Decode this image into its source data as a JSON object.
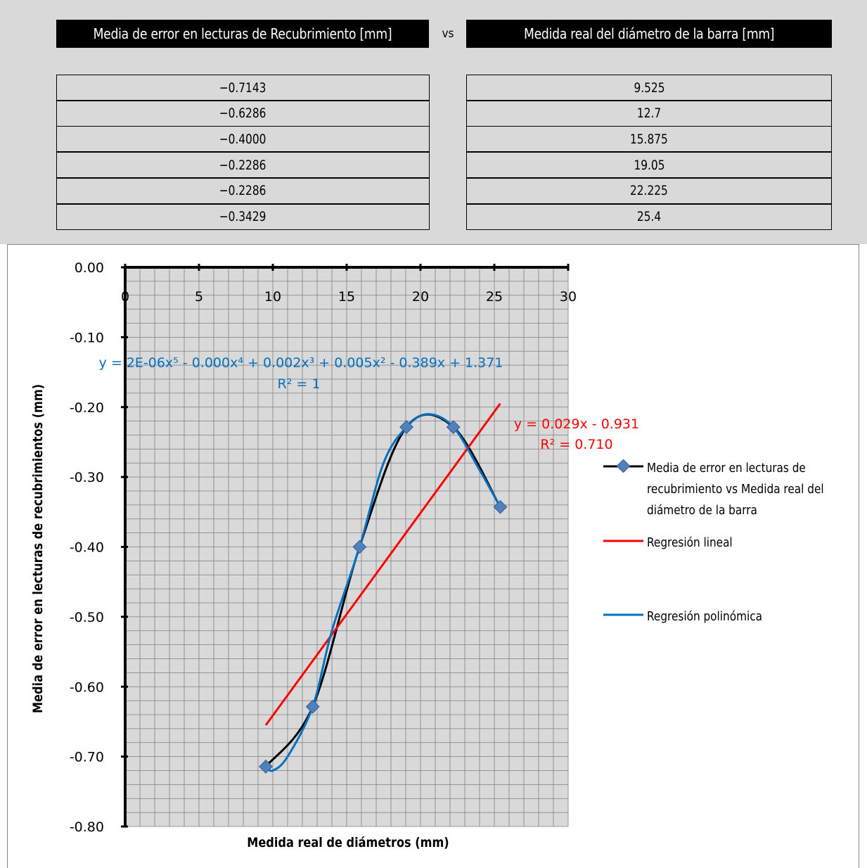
{
  "table": {
    "header_left": "Media de error en lecturas de Recubrimiento [mm]",
    "header_vs": "vs",
    "header_right": "Medida real del diámetro de la barra [mm]",
    "rows": [
      {
        "error": "-0.7143",
        "diameter": "9.525"
      },
      {
        "error": "-0.6286",
        "diameter": "12.7"
      },
      {
        "error": "-0.4000",
        "diameter": "15.875"
      },
      {
        "error": "-0.2286",
        "diameter": "19.05"
      },
      {
        "error": "-0.2286",
        "diameter": "22.225"
      },
      {
        "error": "-0.3429",
        "diameter": "25.4"
      }
    ]
  },
  "chart_data": {
    "type": "line",
    "title": "",
    "xlabel": "Medida real de diámetros (mm)",
    "ylabel": "Media de error en lecturas de recubrimientos (mm)",
    "xlim": [
      0,
      30
    ],
    "ylim": [
      -0.8,
      0.0
    ],
    "x_ticks": [
      "0",
      "5",
      "10",
      "15",
      "20",
      "25",
      "30"
    ],
    "y_ticks": [
      "0.00",
      "-0.10",
      "-0.20",
      "-0.30",
      "-0.40",
      "-0.50",
      "-0.60",
      "-0.70",
      "-0.80"
    ],
    "grid": true,
    "legend_position": "right",
    "series": [
      {
        "name": "Media de error en lecturas de recubrimiento vs Medida real del diámetro de la barra",
        "color": "#000000",
        "marker": "diamond",
        "marker_color": "#4f81bd",
        "x": [
          9.525,
          12.7,
          15.875,
          19.05,
          22.225,
          25.4
        ],
        "y": [
          -0.7143,
          -0.6286,
          -0.4,
          -0.2286,
          -0.2286,
          -0.3429
        ]
      },
      {
        "name": "Regresión lineal",
        "color": "#ff0000",
        "x": [
          9.525,
          25.4
        ],
        "y": [
          -0.655,
          -0.195
        ]
      },
      {
        "name": "Regresión polinómica",
        "color": "#0070c0",
        "x": [
          9.525,
          10.0,
          11.0,
          12.7,
          14.0,
          15.875,
          17.5,
          19.05,
          20.5,
          22.225,
          24.0,
          25.4
        ],
        "y": [
          -0.7143,
          -0.72,
          -0.7,
          -0.6286,
          -0.52,
          -0.4,
          -0.28,
          -0.2286,
          -0.21,
          -0.2286,
          -0.29,
          -0.3429
        ]
      }
    ],
    "annotations": {
      "poly_equation": "y = 2E-06x⁵ - 0.000x⁴ + 0.002x³ + 0.005x² - 0.389x + 1.371",
      "poly_r2": "R² = 1",
      "linear_equation": "y = 0.029x - 0.931",
      "linear_r2": "R² = 0.710"
    },
    "legend": {
      "series1_line1": "Media de error en lecturas de",
      "series1_line2": "recubrimiento vs Medida real del",
      "series1_line3": "diámetro de la barra",
      "series2": "Regresión lineal",
      "series3": "Regresión polinómica"
    }
  }
}
